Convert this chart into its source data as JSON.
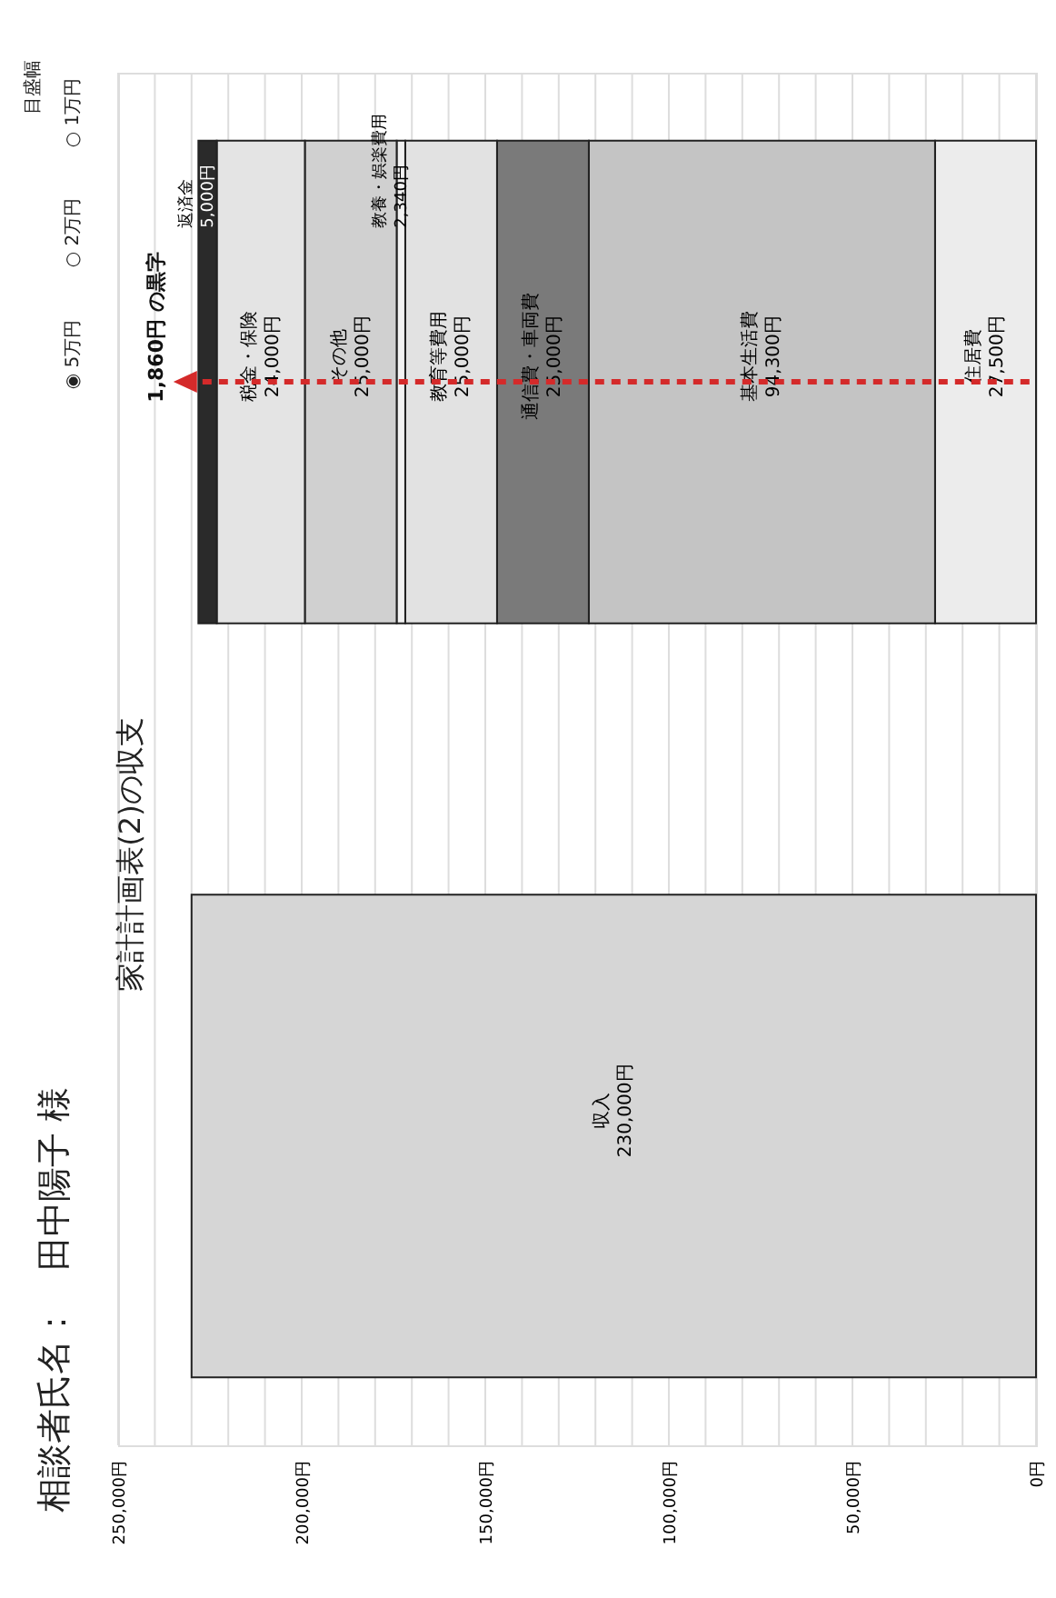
{
  "chart_data": {
    "type": "bar",
    "orientation": "horizontal",
    "stacked": true,
    "title": "家計計画表(2)の収支",
    "categories": [
      null,
      null
    ],
    "series": [
      {
        "name": "住居費",
        "color": "#ececec",
        "values": [
          27500,
          null
        ],
        "value_labels": [
          "27,500円",
          null
        ]
      },
      {
        "name": "基本生活費",
        "color": "#c4c4c4",
        "values": [
          94300,
          null
        ],
        "value_labels": [
          "94,300円",
          null
        ]
      },
      {
        "name": "通信費・車両費",
        "color": "#7a7a7a",
        "values": [
          25000,
          null
        ],
        "value_labels": [
          "25,000円",
          null
        ]
      },
      {
        "name": "教育等費用",
        "color": "#e2e2e2",
        "values": [
          25000,
          null
        ],
        "value_labels": [
          "25,000円",
          null
        ]
      },
      {
        "name": "教養・娯楽費用",
        "color": "#f2f2f2",
        "values": [
          2340,
          null
        ],
        "value_labels": [
          "2,340円",
          null
        ]
      },
      {
        "name": "その他",
        "color": "#d0d0d0",
        "values": [
          25000,
          null
        ],
        "value_labels": [
          "25,000円",
          null
        ]
      },
      {
        "name": "税金・保険",
        "color": "#e4e4e4",
        "values": [
          24000,
          null
        ],
        "value_labels": [
          "24,000円",
          null
        ]
      },
      {
        "name": "返済金",
        "color": "#2a2a2a",
        "values": [
          5000,
          null
        ],
        "value_labels": [
          "5,000円",
          null
        ]
      },
      {
        "name": "収入",
        "color": "#d6d6d6",
        "values": [
          null,
          230000
        ],
        "value_labels": [
          null,
          "230,000円"
        ]
      }
    ],
    "xlim": [
      250000,
      0
    ],
    "xticks": [
      {
        "value": 250000,
        "label": "250,000円"
      },
      {
        "value": 240000,
        "label": null
      },
      {
        "value": 230000,
        "label": null
      },
      {
        "value": 220000,
        "label": null
      },
      {
        "value": 210000,
        "label": null
      },
      {
        "value": 200000,
        "label": "200,000円"
      },
      {
        "value": 190000,
        "label": null
      },
      {
        "value": 180000,
        "label": null
      },
      {
        "value": 170000,
        "label": null
      },
      {
        "value": 160000,
        "label": null
      },
      {
        "value": 150000,
        "label": "150,000円"
      },
      {
        "value": 140000,
        "label": null
      },
      {
        "value": 130000,
        "label": null
      },
      {
        "value": 120000,
        "label": null
      },
      {
        "value": 110000,
        "label": null
      },
      {
        "value": 100000,
        "label": "100,000円"
      },
      {
        "value": 90000,
        "label": null
      },
      {
        "value": 80000,
        "label": null
      },
      {
        "value": 70000,
        "label": null
      },
      {
        "value": 60000,
        "label": null
      },
      {
        "value": 50000,
        "label": "50,000円"
      },
      {
        "value": 40000,
        "label": null
      },
      {
        "value": 30000,
        "label": null
      },
      {
        "value": 20000,
        "label": null
      },
      {
        "value": 10000,
        "label": null
      },
      {
        "value": 0,
        "label": "0円"
      }
    ],
    "grid": "x",
    "tick_labels": "x",
    "legend": false,
    "annotations": [
      "相談者氏名：　田中陽子 様",
      "目盛幅",
      "◉ 5万円",
      "○ 2万円",
      "○ 1万円",
      {
        "text": "1,860円 の黒字",
        "x": 230000
      }
    ]
  }
}
